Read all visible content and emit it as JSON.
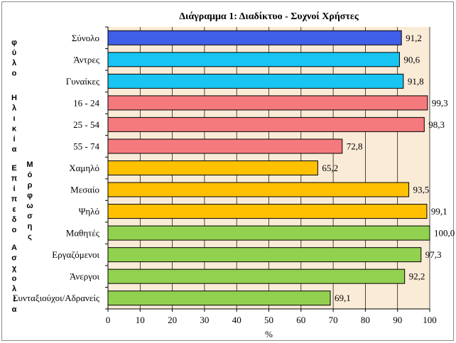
{
  "chart_data": {
    "type": "bar",
    "orientation": "horizontal",
    "title": "Διάγραμμα 1: Διαδίκτυο - Συχνοί Χρήστες",
    "xlabel": "%",
    "xlim": [
      0,
      100
    ],
    "xticks": [
      0,
      10,
      20,
      30,
      40,
      50,
      60,
      70,
      80,
      90,
      100
    ],
    "grid": true,
    "categories": [
      "Σύνολο",
      "Άντρες",
      "Γυναίκες",
      "16 - 24",
      "25 - 54",
      "55 - 74",
      "Χαμηλό",
      "Μεσαίο",
      "Ψηλό",
      "Μαθητές",
      "Εργαζόμενοι",
      "Άνεργοι",
      "Συνταξιούχοι/Αδρανείς"
    ],
    "values": [
      91.2,
      90.6,
      91.8,
      99.3,
      98.3,
      72.8,
      65.2,
      93.5,
      99.1,
      100.0,
      97.3,
      92.2,
      69.1
    ],
    "value_labels": [
      "91,2",
      "90,6",
      "91,8",
      "99,3",
      "98,3",
      "72,8",
      "65,2",
      "93,5",
      "99,1",
      "100,0",
      "97,3",
      "92,2",
      "69,1"
    ],
    "bar_colors": [
      "#3f5fe8",
      "#18c4f2",
      "#18c4f2",
      "#f47a7e",
      "#f47a7e",
      "#f47a7e",
      "#ffc000",
      "#ffc000",
      "#ffc000",
      "#92d050",
      "#92d050",
      "#92d050",
      "#92d050"
    ],
    "plot_background": "#faebd7",
    "groups": [
      {
        "name": "φύλο",
        "letters": [
          "φ",
          "ύ",
          "λ",
          "ο"
        ]
      },
      {
        "name": "Ηλικία",
        "letters": [
          "Η",
          "λ",
          "ι",
          "κ",
          "ί",
          "α"
        ]
      },
      {
        "name": "Επίπεδο Μόρφωσης",
        "letters_outer": [
          "Ε",
          "π",
          "ί",
          "π",
          "ε",
          "δ",
          "ο"
        ],
        "letters_inner": [
          "Μ",
          "ό",
          "ρ",
          "φ",
          "ω",
          "σ",
          "η",
          "ς"
        ]
      },
      {
        "name": "Ασχολία",
        "letters": [
          "Α",
          "σ",
          "χ",
          "ο",
          "λ",
          "ί",
          "α"
        ]
      }
    ]
  }
}
